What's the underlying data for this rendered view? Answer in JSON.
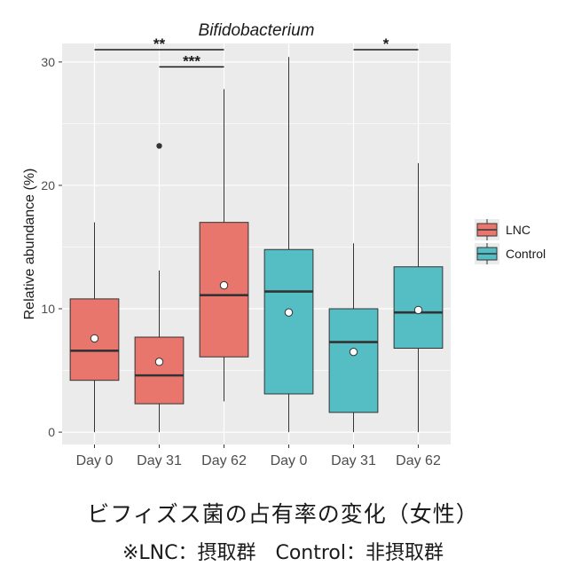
{
  "chart_data": {
    "type": "box",
    "title": "Bifidobacterium",
    "xlabel": "",
    "ylabel": "Relative abundance (%)",
    "ylim": [
      -1,
      31.5
    ],
    "yticks": [
      0,
      10,
      20,
      30
    ],
    "grid": true,
    "legend_position": "right",
    "categories": [
      "Day 0",
      "Day 31",
      "Day 62",
      "Day 0",
      "Day 31",
      "Day 62"
    ],
    "series": [
      {
        "name": "LNC",
        "color": "#e8766c",
        "boxes": [
          {
            "category": "Day 0",
            "min": 0.0,
            "q1": 4.2,
            "median": 6.6,
            "q3": 10.8,
            "max": 17.0,
            "mean": 7.6,
            "outliers": []
          },
          {
            "category": "Day 31",
            "min": 0.0,
            "q1": 2.3,
            "median": 4.6,
            "q3": 7.7,
            "max": 13.1,
            "mean": 5.7,
            "outliers": [
              23.2
            ]
          },
          {
            "category": "Day 62",
            "min": 2.5,
            "q1": 6.1,
            "median": 11.1,
            "q3": 17.0,
            "max": 27.8,
            "mean": 11.9,
            "outliers": []
          }
        ]
      },
      {
        "name": "Control",
        "color": "#55bec4",
        "boxes": [
          {
            "category": "Day 0",
            "min": 0.0,
            "q1": 3.1,
            "median": 11.4,
            "q3": 14.8,
            "max": 30.4,
            "mean": 9.7,
            "outliers": []
          },
          {
            "category": "Day 31",
            "min": 0.0,
            "q1": 1.6,
            "median": 7.3,
            "q3": 10.0,
            "max": 15.3,
            "mean": 6.5,
            "outliers": []
          },
          {
            "category": "Day 62",
            "min": 0.0,
            "q1": 6.8,
            "median": 9.7,
            "q3": 13.4,
            "max": 21.8,
            "mean": 9.9,
            "outliers": []
          }
        ]
      }
    ],
    "significance": [
      {
        "from": 0,
        "to": 2,
        "y": 31.0,
        "label": "**"
      },
      {
        "from": 1,
        "to": 2,
        "y": 29.6,
        "label": "***"
      },
      {
        "from": 4,
        "to": 5,
        "y": 31.0,
        "label": "*"
      }
    ]
  },
  "caption": {
    "line1": "ビフィズス菌の占有率の変化（女性）",
    "line2": "※LNC：摂取群　Control：非摂取群"
  }
}
